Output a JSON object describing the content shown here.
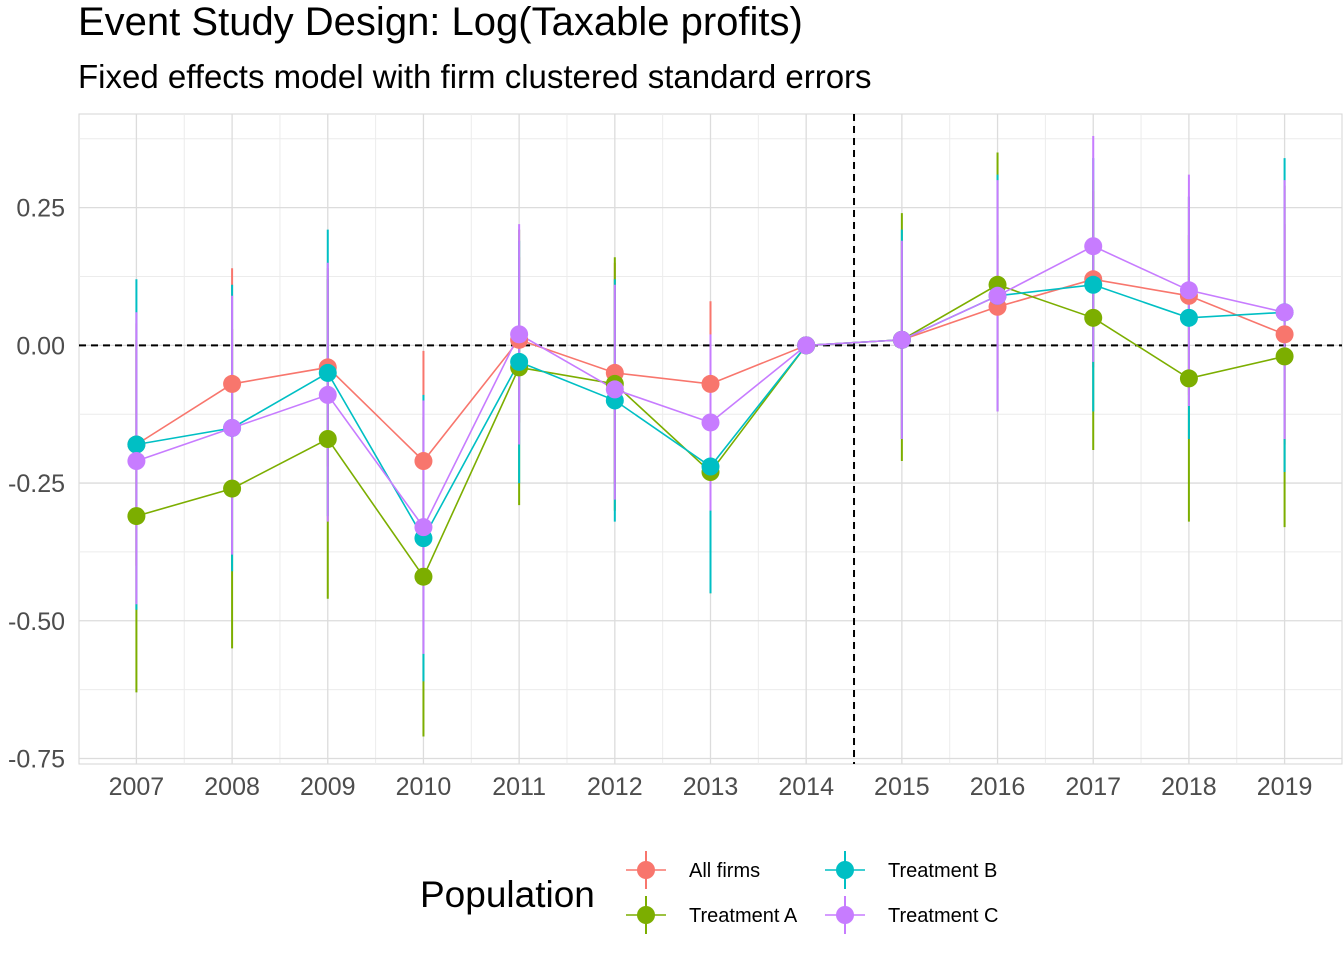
{
  "chart_data": {
    "type": "line",
    "title": "Event Study Design: Log(Taxable profits)",
    "subtitle": "Fixed effects model with firm clustered standard errors",
    "xlabel": "",
    "ylabel": "",
    "x": [
      2007,
      2008,
      2009,
      2010,
      2011,
      2012,
      2013,
      2014,
      2015,
      2016,
      2017,
      2018,
      2019
    ],
    "ylim": [
      -0.76,
      0.42
    ],
    "yticks": [
      -0.75,
      -0.5,
      -0.25,
      0.0,
      0.25
    ],
    "ytick_labels": [
      "-0.75",
      "-0.50",
      "-0.25",
      "0.00",
      "0.25"
    ],
    "grid": true,
    "reference_lines": {
      "hline": 0,
      "vline": 2014.5
    },
    "legend": {
      "title": "Population",
      "position": "bottom"
    },
    "series": [
      {
        "name": "All firms",
        "color": "#F8766D",
        "values": [
          -0.18,
          -0.07,
          -0.04,
          -0.21,
          0.01,
          -0.05,
          -0.07,
          0.0,
          0.01,
          0.07,
          0.12,
          0.09,
          0.02
        ],
        "lower": [
          -0.4,
          -0.28,
          -0.22,
          -0.4,
          -0.14,
          -0.25,
          -0.22,
          0.0,
          -0.17,
          -0.06,
          -0.04,
          -0.09,
          -0.18
        ],
        "upper": [
          0.04,
          0.14,
          0.14,
          -0.01,
          0.16,
          0.15,
          0.08,
          0.0,
          0.19,
          0.2,
          0.28,
          0.27,
          0.22
        ]
      },
      {
        "name": "Treatment A",
        "color": "#7CAE00",
        "values": [
          -0.31,
          -0.26,
          -0.17,
          -0.42,
          -0.04,
          -0.07,
          -0.23,
          0.0,
          0.01,
          0.11,
          0.05,
          -0.06,
          -0.02
        ],
        "lower": [
          -0.63,
          -0.55,
          -0.46,
          -0.71,
          -0.29,
          -0.3,
          -0.45,
          0.0,
          -0.21,
          -0.12,
          -0.19,
          -0.32,
          -0.33
        ],
        "upper": [
          0.01,
          0.03,
          0.12,
          -0.13,
          0.21,
          0.16,
          -0.01,
          0.0,
          0.24,
          0.35,
          0.3,
          0.2,
          0.29
        ]
      },
      {
        "name": "Treatment B",
        "color": "#00BFC4",
        "values": [
          -0.18,
          -0.15,
          -0.05,
          -0.35,
          -0.03,
          -0.1,
          -0.22,
          0.0,
          0.01,
          0.09,
          0.11,
          0.05,
          0.06
        ],
        "lower": [
          -0.48,
          -0.41,
          -0.31,
          -0.61,
          -0.25,
          -0.32,
          -0.45,
          0.0,
          -0.17,
          -0.12,
          -0.12,
          -0.17,
          -0.23
        ],
        "upper": [
          0.12,
          0.11,
          0.21,
          -0.09,
          0.19,
          0.12,
          0.01,
          0.0,
          0.21,
          0.31,
          0.34,
          0.27,
          0.34
        ]
      },
      {
        "name": "Treatment C",
        "color": "#C77CFF",
        "values": [
          -0.21,
          -0.15,
          -0.09,
          -0.33,
          0.02,
          -0.08,
          -0.14,
          0.0,
          0.01,
          0.09,
          0.18,
          0.1,
          0.06
        ],
        "lower": [
          -0.47,
          -0.38,
          -0.32,
          -0.56,
          -0.18,
          -0.28,
          -0.3,
          0.0,
          -0.17,
          -0.12,
          -0.03,
          -0.11,
          -0.17
        ],
        "upper": [
          0.06,
          0.09,
          0.15,
          -0.1,
          0.22,
          0.11,
          0.02,
          0.0,
          0.19,
          0.3,
          0.38,
          0.31,
          0.3
        ]
      }
    ]
  }
}
